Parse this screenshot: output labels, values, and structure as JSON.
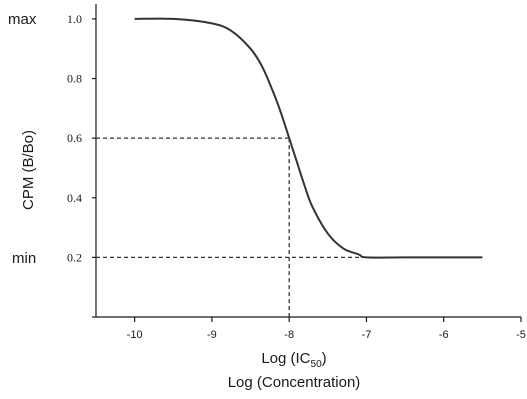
{
  "chart_data": {
    "type": "line",
    "x_ticks": [
      "-10",
      "-9",
      "-8",
      "-7",
      "-6",
      "-5"
    ],
    "y_ticks": [
      "0.2",
      "0.4",
      "0.6",
      "0.8",
      "1.0"
    ],
    "xlim": [
      -10.5,
      -5
    ],
    "ylim": [
      0,
      1.05
    ],
    "ylabel": "CPM (B/Bo)",
    "xlabel_main": "Log (IC",
    "xlabel_sub": "50",
    "xlabel_close": ")",
    "xlabel_2": "Log (Concentration)",
    "side_labels": {
      "max": "max",
      "min": "min"
    },
    "series": [
      {
        "x": [
          -10.0,
          -9.5,
          -9.0,
          -8.75,
          -8.5,
          -8.35,
          -8.2,
          -8.1,
          -8.0,
          -7.9,
          -7.8,
          -7.7,
          -7.5,
          -7.3,
          -7.1,
          -7.0,
          -6.5,
          -6.0,
          -5.5
        ],
        "y": [
          1.0,
          1.0,
          0.985,
          0.96,
          0.9,
          0.84,
          0.75,
          0.68,
          0.6,
          0.52,
          0.44,
          0.37,
          0.28,
          0.23,
          0.21,
          0.2,
          0.2,
          0.2,
          0.2
        ]
      }
    ],
    "guides": [
      {
        "type": "ic50",
        "x": -8.0,
        "y": 0.6
      },
      {
        "type": "min",
        "y": 0.2
      }
    ],
    "grid": false
  }
}
